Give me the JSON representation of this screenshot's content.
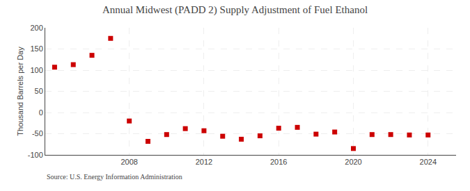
{
  "chart_data": {
    "type": "scatter",
    "title": "Annual Midwest (PADD 2) Supply Adjustment of Fuel Ethanol",
    "ylabel": "Thousand Barrels per Day",
    "annotations": [
      "Source: U.S. Energy Information Administration"
    ],
    "x": [
      2004,
      2005,
      2006,
      2007,
      2008,
      2009,
      2010,
      2011,
      2012,
      2013,
      2014,
      2015,
      2016,
      2017,
      2018,
      2019,
      2020,
      2021,
      2022,
      2023,
      2024
    ],
    "values": [
      107,
      113,
      135,
      175,
      -20,
      -68,
      -52,
      -38,
      -43,
      -56,
      -63,
      -55,
      -37,
      -35,
      -51,
      -46,
      -85,
      -52,
      -52,
      -53,
      -53
    ],
    "color": "#cc0000",
    "marker": "square",
    "xlim": [
      2003.5,
      2025.5
    ],
    "xticks": [
      2008,
      2012,
      2016,
      2020,
      2024
    ],
    "ylim": [
      -100,
      200
    ],
    "yticks": [
      -100,
      -50,
      0,
      50,
      100,
      150,
      200
    ],
    "grid": true
  }
}
